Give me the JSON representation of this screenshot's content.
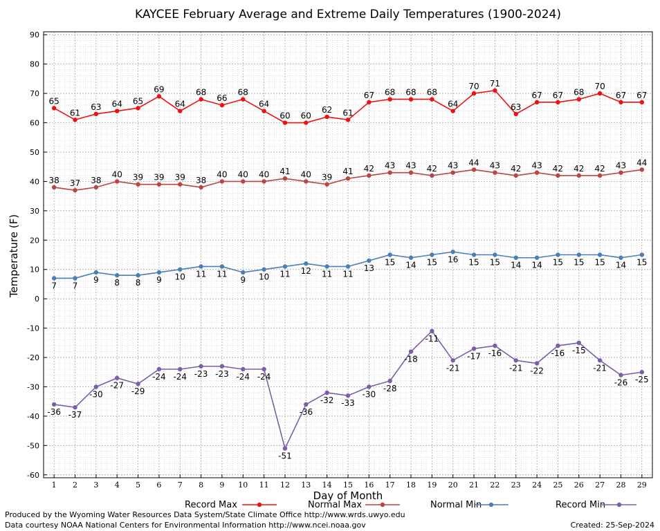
{
  "chart_data": {
    "type": "line",
    "title": "KAYCEE February Average and Extreme Daily Temperatures (1900-2024)",
    "xlabel": "Day of Month",
    "ylabel": "Temperature (F)",
    "x": [
      1,
      2,
      3,
      4,
      5,
      6,
      7,
      8,
      9,
      10,
      11,
      12,
      13,
      14,
      15,
      16,
      17,
      18,
      19,
      20,
      21,
      22,
      23,
      24,
      25,
      26,
      27,
      28,
      29
    ],
    "xlim": [
      0.5,
      29.5
    ],
    "ylim": [
      -61,
      91
    ],
    "yticks": [
      90,
      80,
      70,
      60,
      50,
      40,
      30,
      20,
      10,
      0,
      -10,
      -20,
      -30,
      -40,
      -50,
      -60
    ],
    "grid": true,
    "legend_position": "bottom",
    "series": [
      {
        "name": "Record Max",
        "color": "#ee1111",
        "label_position": "above",
        "values": [
          65,
          61,
          63,
          64,
          65,
          69,
          64,
          68,
          66,
          68,
          64,
          60,
          60,
          62,
          61,
          67,
          68,
          68,
          68,
          64,
          70,
          71,
          63,
          67,
          67,
          68,
          70,
          67,
          67
        ]
      },
      {
        "name": "Normal Max",
        "color": "#bb4444",
        "label_position": "above",
        "values": [
          38,
          37,
          38,
          40,
          39,
          39,
          39,
          38,
          40,
          40,
          40,
          41,
          40,
          39,
          41,
          42,
          43,
          43,
          42,
          43,
          44,
          43,
          42,
          43,
          42,
          42,
          42,
          43,
          44
        ]
      },
      {
        "name": "Normal Min",
        "color": "#4a7fb5",
        "label_position": "below",
        "values": [
          7,
          7,
          9,
          8,
          8,
          9,
          10,
          11,
          11,
          9,
          10,
          11,
          12,
          11,
          11,
          13,
          15,
          14,
          15,
          16,
          15,
          15,
          14,
          14,
          15,
          15,
          15,
          14,
          15
        ]
      },
      {
        "name": "Record Min",
        "color": "#7b5ea7",
        "label_position": "below",
        "values": [
          -36,
          -37,
          -30,
          -27,
          -29,
          -24,
          -24,
          -23,
          -23,
          -24,
          -24,
          -51,
          -36,
          -32,
          -33,
          -30,
          -28,
          -18,
          -11,
          -21,
          -17,
          -16,
          -21,
          -22,
          -16,
          -15,
          -21,
          -26,
          -25
        ]
      }
    ]
  },
  "footer": {
    "produced_by": "Produced by the Wyoming Water Resources Data System/State Climate Office http://www.wrds.uwyo.edu",
    "data_courtesy": "Data courtesy NOAA National Centers for Environmental Information http://www.ncei.noaa.gov",
    "created": "Created: 25-Sep-2024"
  }
}
